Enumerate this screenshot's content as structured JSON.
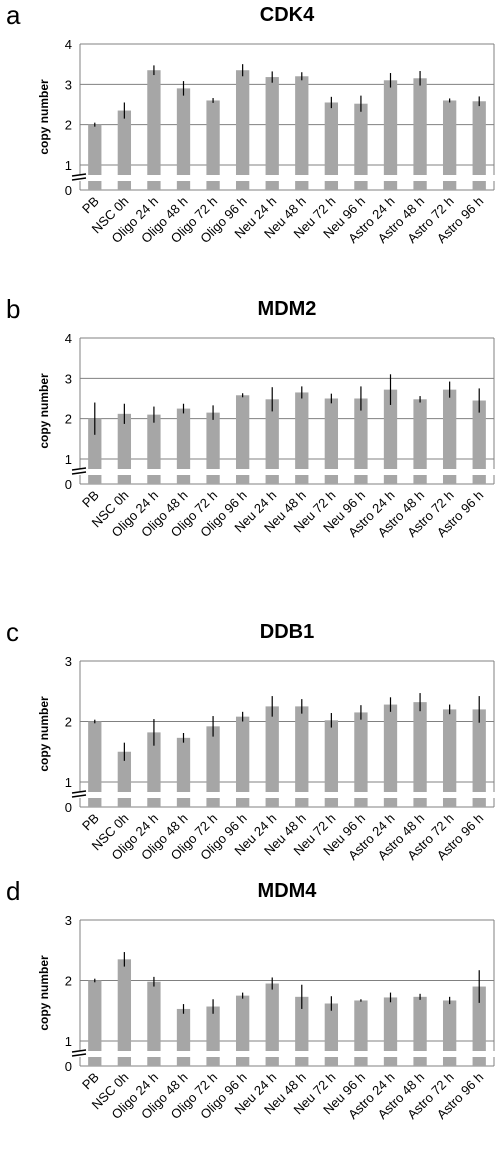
{
  "chart_data": [
    {
      "panel": "a",
      "title": "CDK4",
      "type": "bar",
      "ylabel": "copy number",
      "ylim": [
        1,
        4
      ],
      "yticks": [
        1,
        2,
        3,
        4
      ],
      "broken_axis_zero": "0",
      "categories": [
        "PB",
        "NSC 0h",
        "Oligo 24 h",
        "Oligo 48 h",
        "Oligo 72 h",
        "Oligo 96 h",
        "Neu 24 h",
        "Neu 48 h",
        "Neu 72 h",
        "Neu 96 h",
        "Astro 24 h",
        "Astro 48 h",
        "Astro 72 h",
        "Astro 96 h"
      ],
      "values": [
        2.0,
        2.35,
        3.35,
        2.9,
        2.6,
        3.35,
        3.18,
        3.2,
        2.55,
        2.52,
        3.1,
        3.15,
        2.6,
        2.58
      ],
      "errors": [
        0.05,
        0.2,
        0.12,
        0.18,
        0.06,
        0.15,
        0.14,
        0.1,
        0.14,
        0.2,
        0.18,
        0.18,
        0.05,
        0.12
      ],
      "grid": true,
      "color": "#a6a6a6"
    },
    {
      "panel": "b",
      "title": "MDM2",
      "type": "bar",
      "ylabel": "copy number",
      "ylim": [
        1,
        4
      ],
      "yticks": [
        1,
        2,
        3,
        4
      ],
      "broken_axis_zero": "0",
      "categories": [
        "PB",
        "NSC 0h",
        "Oligo 24 h",
        "Oligo 48 h",
        "Oligo 72 h",
        "Oligo 96 h",
        "Neu 24 h",
        "Neu 48 h",
        "Neu 72 h",
        "Neu 96 h",
        "Astro 24 h",
        "Astro 48 h",
        "Astro 72 h",
        "Astro 96 h"
      ],
      "values": [
        2.0,
        2.12,
        2.1,
        2.25,
        2.15,
        2.58,
        2.48,
        2.65,
        2.5,
        2.5,
        2.72,
        2.48,
        2.72,
        2.45
      ],
      "errors": [
        0.4,
        0.25,
        0.2,
        0.12,
        0.18,
        0.05,
        0.3,
        0.15,
        0.12,
        0.3,
        0.38,
        0.08,
        0.2,
        0.3
      ],
      "grid": true,
      "color": "#a6a6a6"
    },
    {
      "panel": "c",
      "title": "DDB1",
      "type": "bar",
      "ylabel": "copy number",
      "ylim": [
        1,
        3
      ],
      "yticks": [
        1,
        2,
        3
      ],
      "broken_axis_zero": "0",
      "categories": [
        "PB",
        "NSC 0h",
        "Oligo 24 h",
        "Oligo 48 h",
        "Oligo 72 h",
        "Oligo 96 h",
        "Neu 24 h",
        "Neu 48 h",
        "Neu 72 h",
        "Neu 96 h",
        "Astro 24 h",
        "Astro 48 h",
        "Astro 72 h",
        "Astro 96 h"
      ],
      "values": [
        2.0,
        1.5,
        1.82,
        1.73,
        1.92,
        2.08,
        2.25,
        2.25,
        2.02,
        2.15,
        2.28,
        2.32,
        2.2,
        2.2
      ],
      "errors": [
        0.03,
        0.15,
        0.22,
        0.08,
        0.17,
        0.08,
        0.17,
        0.12,
        0.12,
        0.12,
        0.12,
        0.15,
        0.08,
        0.22
      ],
      "grid": true,
      "color": "#a6a6a6"
    },
    {
      "panel": "d",
      "title": "MDM4",
      "type": "bar",
      "ylabel": "copy number",
      "ylim": [
        1,
        3
      ],
      "yticks": [
        1,
        2,
        3
      ],
      "broken_axis_zero": "0",
      "categories": [
        "PB",
        "NSC 0h",
        "Oligo 24 h",
        "Oligo 48 h",
        "Oligo 72 h",
        "Oligo 96 h",
        "Neu 24 h",
        "Neu 48 h",
        "Neu 72 h",
        "Neu 96 h",
        "Astro 24 h",
        "Astro 48 h",
        "Astro 72 h",
        "Astro 96 h"
      ],
      "values": [
        2.0,
        2.35,
        1.98,
        1.53,
        1.57,
        1.75,
        1.95,
        1.73,
        1.62,
        1.67,
        1.72,
        1.73,
        1.67,
        1.9
      ],
      "errors": [
        0.03,
        0.12,
        0.08,
        0.08,
        0.12,
        0.05,
        0.1,
        0.2,
        0.12,
        0.02,
        0.08,
        0.05,
        0.06,
        0.27
      ],
      "grid": true,
      "color": "#a6a6a6"
    }
  ]
}
